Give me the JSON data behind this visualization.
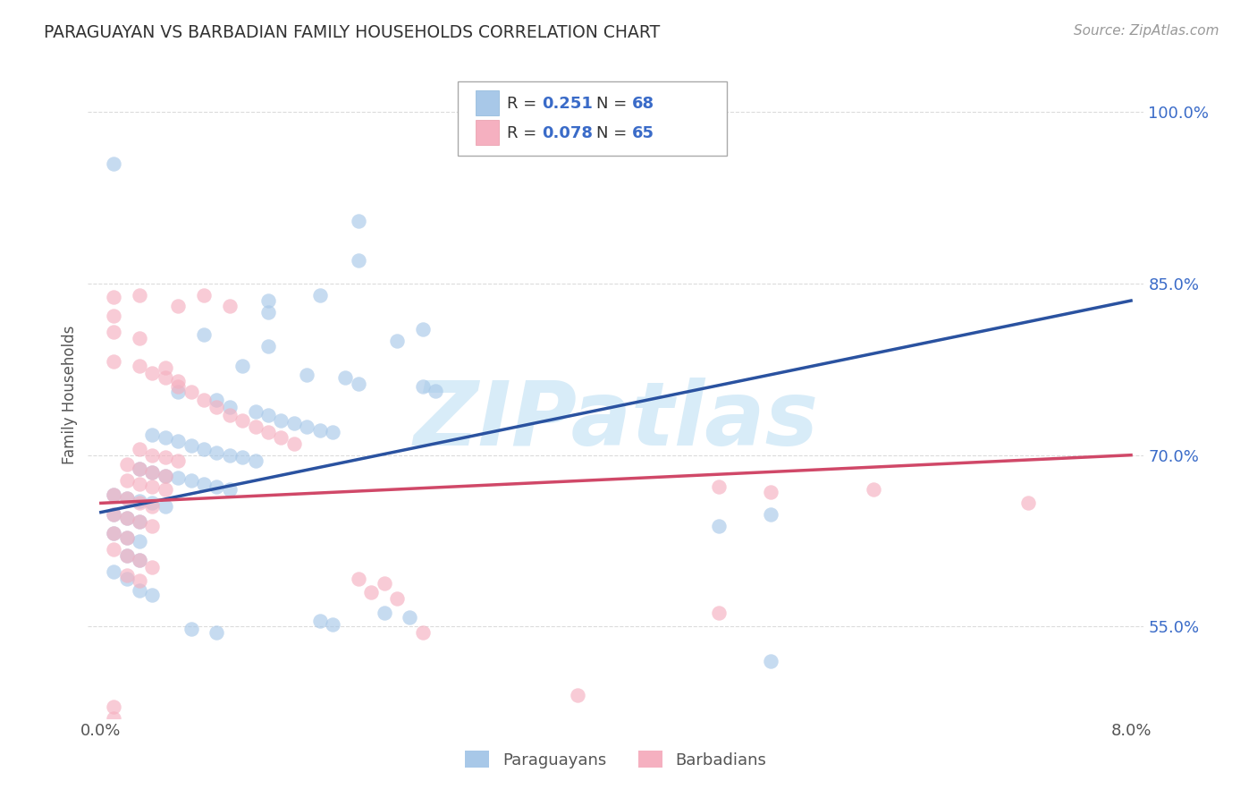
{
  "title": "PARAGUAYAN VS BARBADIAN FAMILY HOUSEHOLDS CORRELATION CHART",
  "source": "Source: ZipAtlas.com",
  "ylabel_label": "Family Households",
  "x_min": 0.0,
  "x_max": 0.08,
  "y_min": 0.47,
  "y_max": 1.035,
  "x_ticks": [
    0.0,
    0.02,
    0.04,
    0.06,
    0.08
  ],
  "x_tick_labels": [
    "0.0%",
    "",
    "",
    "",
    "8.0%"
  ],
  "y_ticks": [
    0.55,
    0.7,
    0.85,
    1.0
  ],
  "y_tick_labels": [
    "55.0%",
    "70.0%",
    "85.0%",
    "100.0%"
  ],
  "paraguayan_color": "#a8c8e8",
  "barbadian_color": "#f5b0c0",
  "paraguayan_line_color": "#2a52a0",
  "barbadian_line_color": "#d04868",
  "R_paraguayan": "0.251",
  "N_paraguayan": "68",
  "R_barbadian": "0.078",
  "N_barbadian": "65",
  "background_color": "#ffffff",
  "grid_color": "#cccccc",
  "watermark": "ZIPatlas",
  "watermark_color": "#d8ecf8",
  "legend_label_paraguayan": "Paraguayans",
  "legend_label_barbadian": "Barbadians",
  "axis_tick_color": "#3a6bc8",
  "par_line_x": [
    0.0,
    0.08
  ],
  "par_line_y": [
    0.65,
    0.835
  ],
  "bar_line_x": [
    0.0,
    0.08
  ],
  "bar_line_y": [
    0.658,
    0.7
  ],
  "paraguayan_scatter": [
    [
      0.001,
      0.955
    ],
    [
      0.02,
      0.905
    ],
    [
      0.02,
      0.87
    ],
    [
      0.013,
      0.835
    ],
    [
      0.017,
      0.84
    ],
    [
      0.013,
      0.825
    ],
    [
      0.025,
      0.81
    ],
    [
      0.023,
      0.8
    ],
    [
      0.008,
      0.805
    ],
    [
      0.013,
      0.795
    ],
    [
      0.011,
      0.778
    ],
    [
      0.016,
      0.77
    ],
    [
      0.019,
      0.768
    ],
    [
      0.02,
      0.762
    ],
    [
      0.025,
      0.76
    ],
    [
      0.026,
      0.756
    ],
    [
      0.006,
      0.755
    ],
    [
      0.009,
      0.748
    ],
    [
      0.01,
      0.742
    ],
    [
      0.012,
      0.738
    ],
    [
      0.013,
      0.735
    ],
    [
      0.014,
      0.73
    ],
    [
      0.015,
      0.728
    ],
    [
      0.016,
      0.725
    ],
    [
      0.017,
      0.722
    ],
    [
      0.018,
      0.72
    ],
    [
      0.004,
      0.718
    ],
    [
      0.005,
      0.715
    ],
    [
      0.006,
      0.712
    ],
    [
      0.007,
      0.708
    ],
    [
      0.008,
      0.705
    ],
    [
      0.009,
      0.702
    ],
    [
      0.01,
      0.7
    ],
    [
      0.011,
      0.698
    ],
    [
      0.012,
      0.695
    ],
    [
      0.003,
      0.688
    ],
    [
      0.004,
      0.685
    ],
    [
      0.005,
      0.682
    ],
    [
      0.006,
      0.68
    ],
    [
      0.007,
      0.678
    ],
    [
      0.008,
      0.675
    ],
    [
      0.009,
      0.672
    ],
    [
      0.01,
      0.67
    ],
    [
      0.001,
      0.665
    ],
    [
      0.002,
      0.662
    ],
    [
      0.003,
      0.66
    ],
    [
      0.004,
      0.658
    ],
    [
      0.005,
      0.655
    ],
    [
      0.001,
      0.648
    ],
    [
      0.002,
      0.645
    ],
    [
      0.003,
      0.642
    ],
    [
      0.001,
      0.632
    ],
    [
      0.002,
      0.628
    ],
    [
      0.003,
      0.625
    ],
    [
      0.002,
      0.612
    ],
    [
      0.003,
      0.608
    ],
    [
      0.001,
      0.598
    ],
    [
      0.002,
      0.592
    ],
    [
      0.003,
      0.582
    ],
    [
      0.004,
      0.578
    ],
    [
      0.022,
      0.562
    ],
    [
      0.024,
      0.558
    ],
    [
      0.017,
      0.555
    ],
    [
      0.018,
      0.552
    ],
    [
      0.007,
      0.548
    ],
    [
      0.009,
      0.545
    ],
    [
      0.048,
      0.638
    ],
    [
      0.052,
      0.648
    ],
    [
      0.052,
      0.52
    ]
  ],
  "barbadian_scatter": [
    [
      0.001,
      0.822
    ],
    [
      0.001,
      0.838
    ],
    [
      0.008,
      0.84
    ],
    [
      0.01,
      0.83
    ],
    [
      0.001,
      0.808
    ],
    [
      0.003,
      0.802
    ],
    [
      0.001,
      0.782
    ],
    [
      0.005,
      0.776
    ],
    [
      0.006,
      0.83
    ],
    [
      0.003,
      0.84
    ],
    [
      0.003,
      0.778
    ],
    [
      0.004,
      0.772
    ],
    [
      0.005,
      0.768
    ],
    [
      0.006,
      0.765
    ],
    [
      0.006,
      0.76
    ],
    [
      0.007,
      0.755
    ],
    [
      0.008,
      0.748
    ],
    [
      0.009,
      0.742
    ],
    [
      0.01,
      0.735
    ],
    [
      0.011,
      0.73
    ],
    [
      0.012,
      0.725
    ],
    [
      0.013,
      0.72
    ],
    [
      0.014,
      0.715
    ],
    [
      0.015,
      0.71
    ],
    [
      0.003,
      0.705
    ],
    [
      0.004,
      0.7
    ],
    [
      0.005,
      0.698
    ],
    [
      0.006,
      0.695
    ],
    [
      0.002,
      0.692
    ],
    [
      0.003,
      0.688
    ],
    [
      0.004,
      0.685
    ],
    [
      0.005,
      0.682
    ],
    [
      0.002,
      0.678
    ],
    [
      0.003,
      0.675
    ],
    [
      0.004,
      0.672
    ],
    [
      0.005,
      0.67
    ],
    [
      0.001,
      0.665
    ],
    [
      0.002,
      0.662
    ],
    [
      0.003,
      0.658
    ],
    [
      0.004,
      0.655
    ],
    [
      0.001,
      0.648
    ],
    [
      0.002,
      0.645
    ],
    [
      0.003,
      0.642
    ],
    [
      0.004,
      0.638
    ],
    [
      0.001,
      0.632
    ],
    [
      0.002,
      0.628
    ],
    [
      0.001,
      0.618
    ],
    [
      0.002,
      0.612
    ],
    [
      0.003,
      0.608
    ],
    [
      0.004,
      0.602
    ],
    [
      0.002,
      0.595
    ],
    [
      0.003,
      0.59
    ],
    [
      0.02,
      0.592
    ],
    [
      0.022,
      0.588
    ],
    [
      0.021,
      0.58
    ],
    [
      0.023,
      0.575
    ],
    [
      0.048,
      0.672
    ],
    [
      0.052,
      0.668
    ],
    [
      0.06,
      0.67
    ],
    [
      0.072,
      0.658
    ],
    [
      0.048,
      0.562
    ],
    [
      0.025,
      0.545
    ],
    [
      0.037,
      0.49
    ],
    [
      0.001,
      0.48
    ],
    [
      0.001,
      0.47
    ]
  ]
}
